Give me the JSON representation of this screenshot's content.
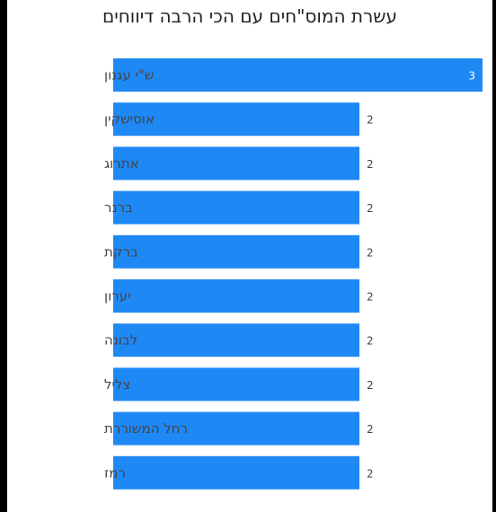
{
  "chart_data": {
    "type": "bar",
    "orientation": "horizontal",
    "title": "עשרת המוס\"חים עם הכי הרבה דיווחים",
    "categories": [
      "ש\"י עגנון",
      "אוסישקין",
      "אתרוג",
      "ברנר",
      "ברקת",
      "יערון",
      "לבונה",
      "צליל",
      "רחל המשוררת",
      "רמז"
    ],
    "values": [
      3,
      2,
      2,
      2,
      2,
      2,
      2,
      2,
      2,
      2
    ],
    "xlim": [
      0,
      3
    ],
    "bar_color": "#1E88F5",
    "grid": false,
    "legend": "none"
  }
}
